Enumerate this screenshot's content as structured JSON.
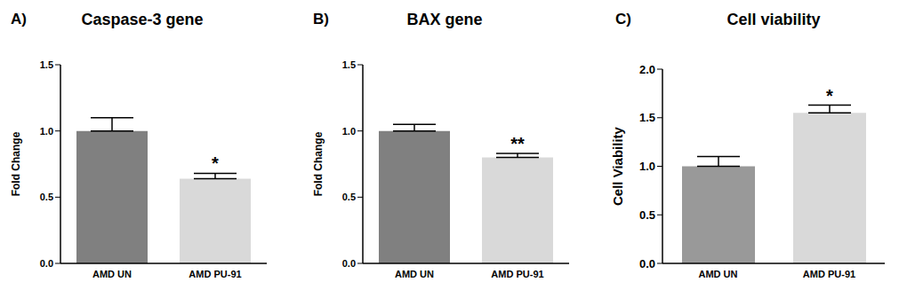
{
  "chart_data": [
    {
      "type": "bar",
      "panel_label": "A)",
      "title": "Caspase-3 gene",
      "y_label": "Fold Change",
      "categories": [
        "AMD UN",
        "AMD PU-91"
      ],
      "values": [
        1.0,
        0.64
      ],
      "errors": [
        0.1,
        0.04
      ],
      "colors": [
        "#808080",
        "#d9d9d9"
      ],
      "ylim": [
        0,
        1.5
      ],
      "yticks": [
        {
          "value": 0,
          "label": "0.0"
        },
        0.5,
        {
          "value": 1,
          "label": "1.0"
        },
        1.5
      ],
      "annotations": [
        {
          "text": "*",
          "category": "AMD PU-91"
        }
      ]
    },
    {
      "type": "bar",
      "panel_label": "B)",
      "title": "BAX gene",
      "y_label": "Fold Change",
      "categories": [
        "AMD UN",
        "AMD PU-91"
      ],
      "values": [
        1.0,
        0.8
      ],
      "errors": [
        0.05,
        0.03
      ],
      "colors": [
        "#808080",
        "#d9d9d9"
      ],
      "ylim": [
        0,
        1.5
      ],
      "yticks": [
        {
          "value": 0,
          "label": "0.0"
        },
        0.5,
        {
          "value": 1,
          "label": "1.0"
        },
        1.5
      ],
      "annotations": [
        {
          "text": "**",
          "category": "AMD PU-91"
        }
      ]
    },
    {
      "type": "bar",
      "panel_label": "C)",
      "title": "Cell viability",
      "y_label": "Cell Viability",
      "categories": [
        "AMD UN",
        "AMD PU-91"
      ],
      "values": [
        1.0,
        1.55
      ],
      "errors": [
        0.1,
        0.08
      ],
      "colors": [
        "#999999",
        "#d9d9d9"
      ],
      "ylim": [
        0,
        2
      ],
      "yticks": [
        {
          "value": 0,
          "label": "0.0"
        },
        0.5,
        {
          "value": 1,
          "label": "1.0"
        },
        1.5,
        {
          "value": 2,
          "label": "2.0"
        }
      ],
      "annotations": [
        {
          "text": "*",
          "category": "AMD PU-91"
        }
      ]
    }
  ]
}
